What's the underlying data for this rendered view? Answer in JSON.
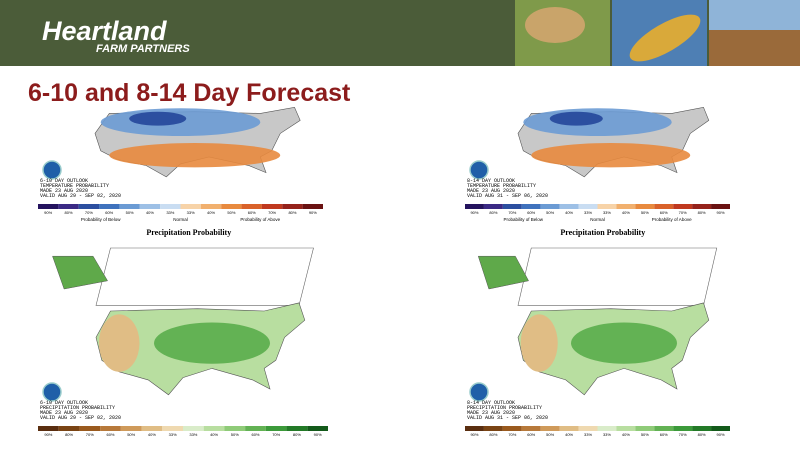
{
  "header": {
    "brand": "Heartland",
    "tagline": "FARM PARTNERS"
  },
  "title": "6-10 and 8-14 Day Forecast",
  "legend_ticks": [
    "90%",
    "80%",
    "70%",
    "60%",
    "50%",
    "40%",
    "33%",
    "33%",
    "40%",
    "50%",
    "60%",
    "70%",
    "80%",
    "90%"
  ],
  "panels": [
    {
      "kind": "temperature",
      "outlook": "6-10 DAY OUTLOOK",
      "variable": "TEMPERATURE PROBABILITY",
      "made": "MADE 23 AUG 2020",
      "valid": "VALID AUG 29 - SEP 02, 2020",
      "legend": {
        "below": "Probability of Below",
        "normal": "Normal",
        "above": "Probability of Above"
      }
    },
    {
      "kind": "temperature",
      "outlook": "8-14 DAY OUTLOOK",
      "variable": "TEMPERATURE PROBABILITY",
      "made": "MADE 23 AUG 2020",
      "valid": "VALID AUG 31 - SEP 06, 2020",
      "legend": {
        "below": "Probability of Below",
        "normal": "Normal",
        "above": "Probability of Above"
      }
    },
    {
      "kind": "precipitation",
      "heading": "Precipitation Probability",
      "outlook": "6-10 DAY OUTLOOK",
      "variable": "PRECIPITATION PROBABILITY",
      "made": "MADE 23 AUG 2020",
      "valid": "VALID AUG 29 - SEP 02, 2020"
    },
    {
      "kind": "precipitation",
      "heading": "Precipitation Probability",
      "outlook": "8-14 DAY OUTLOOK",
      "variable": "PRECIPITATION PROBABILITY",
      "made": "MADE 23 AUG 2020",
      "valid": "VALID AUG 31 - SEP 06, 2020"
    }
  ]
}
